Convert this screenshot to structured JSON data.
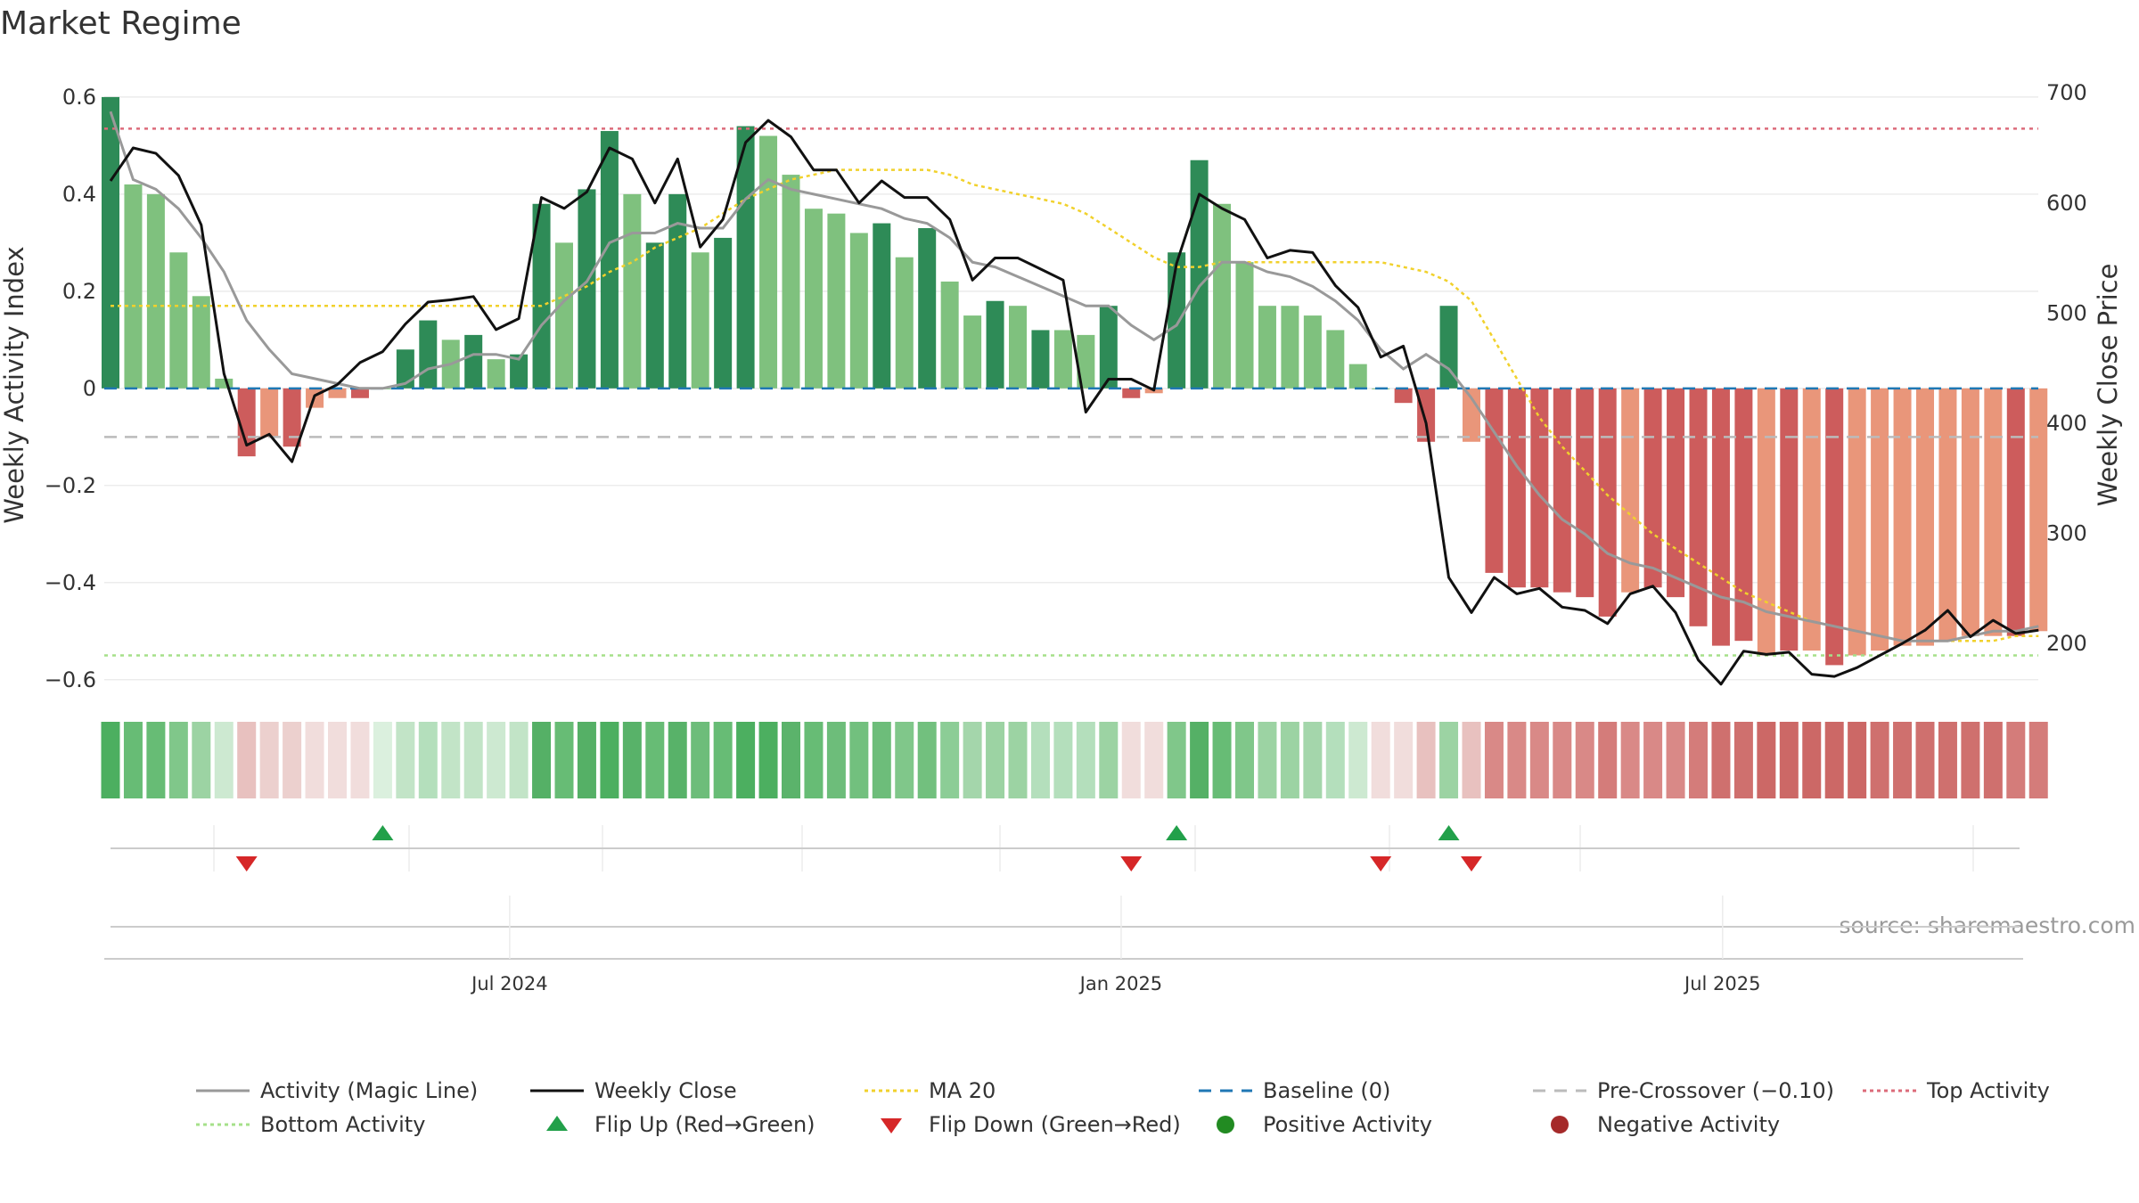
{
  "chart_data": {
    "type": "bar",
    "title": "Market Regime",
    "ylabel": "Weekly Activity Index",
    "y2label": "Weekly Close Price",
    "ylim": [
      -0.65,
      0.62
    ],
    "y2lim": [
      145,
      705
    ],
    "yticks": [
      "0.6",
      "0.4",
      "0.2",
      "0",
      "−0.2",
      "−0.4",
      "−0.6"
    ],
    "ytick_values": [
      0.6,
      0.4,
      0.2,
      0,
      -0.2,
      -0.4,
      -0.6
    ],
    "y2ticks": [
      "700",
      "600",
      "500",
      "400",
      "300",
      "200"
    ],
    "y2tick_values": [
      700,
      600,
      500,
      400,
      300,
      200
    ],
    "x_start": "2024-03-01",
    "x_end": "2025-10-04",
    "x_ticks": [
      {
        "label": "Jul 2024",
        "date": "2024-07-01"
      },
      {
        "label": "Jan 2025",
        "date": "2025-01-01"
      },
      {
        "label": "Jul 2025",
        "date": "2025-07-01"
      }
    ],
    "weeks": 86,
    "activity": [
      0.6,
      0.42,
      0.4,
      0.28,
      0.19,
      0.02,
      -0.14,
      -0.1,
      -0.12,
      -0.04,
      -0.02,
      -0.02,
      0.0,
      0.08,
      0.14,
      0.1,
      0.11,
      0.06,
      0.07,
      0.38,
      0.3,
      0.41,
      0.53,
      0.4,
      0.3,
      0.4,
      0.28,
      0.31,
      0.54,
      0.52,
      0.44,
      0.37,
      0.36,
      0.32,
      0.34,
      0.27,
      0.33,
      0.22,
      0.15,
      0.18,
      0.17,
      0.12,
      0.12,
      0.11,
      0.17,
      -0.02,
      -0.01,
      0.28,
      0.47,
      0.38,
      0.26,
      0.17,
      0.17,
      0.15,
      0.12,
      0.05,
      0.0,
      -0.03,
      -0.11,
      0.17,
      -0.11,
      -0.38,
      -0.41,
      -0.41,
      -0.42,
      -0.43,
      -0.47,
      -0.42,
      -0.41,
      -0.43,
      -0.49,
      -0.53,
      -0.52,
      -0.55,
      -0.54,
      -0.54,
      -0.57,
      -0.55,
      -0.54,
      -0.53,
      -0.53,
      -0.52,
      -0.51,
      -0.51,
      -0.51,
      -0.5
    ],
    "colors": {
      "positive_strong": "#2e8b57",
      "positive_light": "#7fc17e",
      "negative_strong": "#cd5c5c",
      "negative_light": "#e9967a",
      "price_line": "#111111",
      "magic_line": "#999999",
      "ma20": "#f1d12c",
      "baseline": "#1f77b4",
      "pre_crossover": "#bbbbbb",
      "top_activity": "#dc6b7a",
      "bottom_activity": "#a6e08a",
      "flip_up": "#22a04a",
      "flip_down": "#d62728",
      "positive_dot": "#228b22",
      "negative_dot": "#a52a2a"
    },
    "strong_weeks": [
      0,
      6,
      8,
      11,
      13,
      14,
      16,
      18,
      19,
      21,
      22,
      24,
      25,
      27,
      28,
      34,
      36,
      39,
      41,
      44,
      45,
      47,
      48,
      57,
      58,
      59,
      61,
      62,
      63,
      64,
      65,
      66,
      68,
      69,
      70,
      71,
      72,
      74,
      76,
      84
    ],
    "magic_line": [
      0.57,
      0.43,
      0.41,
      0.37,
      0.31,
      0.24,
      0.14,
      0.08,
      0.03,
      0.02,
      0.01,
      0.0,
      0.0,
      0.01,
      0.04,
      0.05,
      0.07,
      0.07,
      0.06,
      0.13,
      0.18,
      0.22,
      0.3,
      0.32,
      0.32,
      0.34,
      0.33,
      0.33,
      0.39,
      0.43,
      0.41,
      0.4,
      0.39,
      0.38,
      0.37,
      0.35,
      0.34,
      0.31,
      0.26,
      0.25,
      0.23,
      0.21,
      0.19,
      0.17,
      0.17,
      0.13,
      0.1,
      0.13,
      0.21,
      0.26,
      0.26,
      0.24,
      0.23,
      0.21,
      0.18,
      0.14,
      0.08,
      0.04,
      0.07,
      0.04,
      -0.02,
      -0.09,
      -0.16,
      -0.22,
      -0.27,
      -0.3,
      -0.34,
      -0.36,
      -0.37,
      -0.39,
      -0.41,
      -0.43,
      -0.44,
      -0.46,
      -0.47,
      -0.48,
      -0.49,
      -0.5,
      -0.51,
      -0.52,
      -0.52,
      -0.52,
      -0.51,
      -0.5,
      -0.5,
      -0.49
    ],
    "ma20": [
      0.17,
      0.17,
      0.17,
      0.17,
      0.17,
      0.17,
      0.17,
      0.17,
      0.17,
      0.17,
      0.17,
      0.17,
      0.17,
      0.17,
      0.17,
      0.17,
      0.17,
      0.17,
      0.17,
      0.17,
      0.19,
      0.21,
      0.24,
      0.26,
      0.29,
      0.31,
      0.33,
      0.36,
      0.39,
      0.41,
      0.43,
      0.44,
      0.45,
      0.45,
      0.45,
      0.45,
      0.45,
      0.44,
      0.42,
      0.41,
      0.4,
      0.39,
      0.38,
      0.36,
      0.33,
      0.3,
      0.27,
      0.25,
      0.25,
      0.26,
      0.26,
      0.26,
      0.26,
      0.26,
      0.26,
      0.26,
      0.26,
      0.25,
      0.24,
      0.22,
      0.18,
      0.1,
      0.02,
      -0.06,
      -0.12,
      -0.17,
      -0.22,
      -0.26,
      -0.3,
      -0.33,
      -0.36,
      -0.39,
      -0.42,
      -0.44,
      -0.46,
      -0.48,
      -0.49,
      -0.5,
      -0.51,
      -0.52,
      -0.52,
      -0.52,
      -0.52,
      -0.52,
      -0.51,
      -0.51
    ],
    "top_activity": 0.535,
    "bottom_activity": -0.55,
    "baseline": 0,
    "pre_crossover": -0.1,
    "price": [
      620,
      650,
      645,
      625,
      580,
      445,
      380,
      390,
      365,
      425,
      435,
      455,
      465,
      490,
      510,
      512,
      515,
      485,
      495,
      605,
      595,
      610,
      650,
      640,
      600,
      640,
      560,
      585,
      655,
      675,
      660,
      630,
      630,
      600,
      620,
      605,
      605,
      585,
      530,
      550,
      550,
      540,
      530,
      410,
      440,
      440,
      430,
      545,
      608,
      595,
      585,
      550,
      557,
      555,
      525,
      505,
      460,
      470,
      400,
      260,
      228,
      260,
      245,
      250,
      233,
      230,
      218,
      245,
      252,
      228,
      185,
      163,
      193,
      190,
      192,
      172,
      170,
      178,
      189,
      200,
      212,
      230,
      206,
      221,
      209,
      212
    ],
    "heat_colors": [
      "#4caf60",
      "#67bc75",
      "#67bc75",
      "#80c78a",
      "#9cd3a3",
      "#cde9d1",
      "#e8c1bf",
      "#ecd0ce",
      "#ecd0ce",
      "#f1dddc",
      "#f1dddc",
      "#f1dddc",
      "#dbf0de",
      "#c2e4c7",
      "#b4dfbc",
      "#c2e4c7",
      "#c2e4c7",
      "#cde9d1",
      "#c2e4c7",
      "#55b066",
      "#67bc75",
      "#55b066",
      "#4caf60",
      "#58b269",
      "#67bc75",
      "#58b269",
      "#6dbd7a",
      "#67bc75",
      "#4caf60",
      "#4caf60",
      "#5bb36b",
      "#67bc75",
      "#6dbd7a",
      "#72c07e",
      "#6dbd7a",
      "#80c78a",
      "#72c07e",
      "#8ccd96",
      "#a4d6ab",
      "#9cd3a3",
      "#9cd3a3",
      "#b4dfbc",
      "#b4dfbc",
      "#b4dfbc",
      "#9cd3a3",
      "#f1dddc",
      "#f1dddc",
      "#80c78a",
      "#55b066",
      "#67bc75",
      "#80c78a",
      "#9cd3a3",
      "#9cd3a3",
      "#a4d6ab",
      "#b4dfbc",
      "#cde9d1",
      "#f1dddc",
      "#f1dddc",
      "#e8c1bf",
      "#9cd3a3",
      "#e8c1bf",
      "#d98987",
      "#d98987",
      "#d98987",
      "#d98987",
      "#d98987",
      "#d47c7a",
      "#d98987",
      "#d98987",
      "#d98987",
      "#d47c7a",
      "#cf706e",
      "#cf706e",
      "#cc6866",
      "#cc6866",
      "#cc6866",
      "#cc6866",
      "#cc6866",
      "#cf706e",
      "#cf706e",
      "#cf706e",
      "#cf706e",
      "#cf706e",
      "#cf706e",
      "#d47c7a",
      "#d47c7a"
    ],
    "flip_up_weeks": [
      12,
      47,
      59
    ],
    "flip_down_weeks": [
      6,
      45,
      56,
      60
    ],
    "legend": [
      {
        "label": "Activity (Magic Line)",
        "symbol": "line",
        "key": "magic_line"
      },
      {
        "label": "Weekly Close",
        "symbol": "line",
        "key": "price_line"
      },
      {
        "label": "MA 20",
        "symbol": "dotted",
        "key": "ma20"
      },
      {
        "label": "Baseline (0)",
        "symbol": "dashed",
        "key": "baseline"
      },
      {
        "label": "Pre-Crossover (−0.10)",
        "symbol": "dashed",
        "key": "pre_crossover"
      },
      {
        "label": "Top Activity",
        "symbol": "dotted",
        "key": "top_activity"
      },
      {
        "label": "Bottom Activity",
        "symbol": "dotted",
        "key": "bottom_activity"
      },
      {
        "label": "Flip Up (Red→Green)",
        "symbol": "triangle-up",
        "key": "flip_up"
      },
      {
        "label": "Flip Down (Green→Red)",
        "symbol": "triangle-down",
        "key": "flip_down"
      },
      {
        "label": "Positive Activity",
        "symbol": "circle",
        "key": "positive_dot"
      },
      {
        "label": "Negative Activity",
        "symbol": "circle",
        "key": "negative_dot"
      }
    ],
    "source": "source: sharemaestro.com"
  }
}
